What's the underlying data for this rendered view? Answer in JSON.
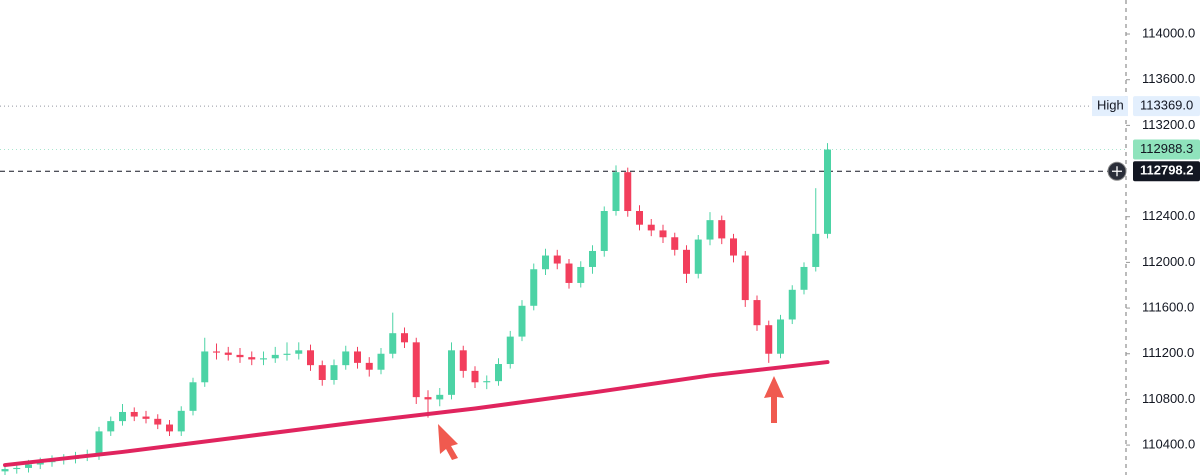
{
  "chart_data": {
    "type": "candlestick",
    "ylim": [
      110138,
      114298
    ],
    "yticks": [
      {
        "value": 114000,
        "label": "114000.0"
      },
      {
        "value": 113600,
        "label": "113600.0"
      },
      {
        "value": 113200,
        "label": "113200.0"
      },
      {
        "value": 112400,
        "label": "112400.0"
      },
      {
        "value": 112000,
        "label": "112000.0"
      },
      {
        "value": 111600,
        "label": "111600.0"
      },
      {
        "value": 111200,
        "label": "111200.0"
      },
      {
        "value": 110800,
        "label": "110800.0"
      },
      {
        "value": 110400,
        "label": "110400.0"
      }
    ],
    "up_color": "#4cd3a5",
    "down_color": "#f23e5c",
    "open": [
      110170,
      110190,
      110200,
      110230,
      110250,
      110270,
      110280,
      110300,
      110310,
      110520,
      110610,
      110690,
      110650,
      110630,
      110580,
      110520,
      110700,
      110950,
      111220,
      111210,
      111190,
      111170,
      111150,
      111160,
      111190,
      111200,
      111230,
      111100,
      110970,
      111100,
      111220,
      111120,
      111060,
      111200,
      111380,
      111300,
      110820,
      110800,
      110840,
      111230,
      111050,
      110950,
      110960,
      111110,
      111350,
      111620,
      111940,
      112060,
      111990,
      111820,
      111960,
      112100,
      112450,
      112790,
      112450,
      112330,
      112280,
      112220,
      112110,
      111900,
      112200,
      112370,
      112210,
      112060,
      111670,
      111450,
      111200,
      111500,
      111760,
      111960,
      112250
    ],
    "high": [
      110230,
      110240,
      110270,
      110290,
      110310,
      110320,
      110340,
      110360,
      110560,
      110650,
      110760,
      110730,
      110700,
      110670,
      110620,
      110740,
      110990,
      111340,
      111290,
      111260,
      111250,
      111220,
      111220,
      111260,
      111300,
      111300,
      111280,
      111140,
      111150,
      111270,
      111260,
      111170,
      111250,
      111560,
      111430,
      111340,
      110880,
      110900,
      111300,
      111270,
      111090,
      111010,
      111160,
      111400,
      111670,
      111990,
      112120,
      112110,
      112030,
      112010,
      112150,
      112490,
      112850,
      112830,
      112500,
      112380,
      112330,
      112260,
      112150,
      112240,
      112440,
      112410,
      112250,
      112100,
      111710,
      111490,
      111540,
      111800,
      112000,
      112650,
      113045
    ],
    "low": [
      110130,
      110150,
      110160,
      110190,
      110210,
      110230,
      110240,
      110260,
      110270,
      110480,
      110570,
      110610,
      110590,
      110540,
      110480,
      110480,
      110660,
      110910,
      111150,
      111140,
      111120,
      111100,
      111100,
      111120,
      111140,
      111150,
      111050,
      110920,
      110930,
      111060,
      111070,
      111000,
      111020,
      111160,
      111250,
      110760,
      110640,
      110740,
      110800,
      110990,
      110900,
      110890,
      110920,
      111070,
      111310,
      111580,
      111890,
      111940,
      111770,
      111780,
      111900,
      112050,
      112410,
      112400,
      112280,
      112230,
      112170,
      112060,
      111820,
      111860,
      112150,
      112160,
      112000,
      111610,
      111400,
      111120,
      111160,
      111460,
      111720,
      111920,
      112210
    ],
    "close": [
      110190,
      110200,
      110230,
      110250,
      110270,
      110280,
      110300,
      110310,
      110520,
      110610,
      110690,
      110650,
      110630,
      110580,
      110520,
      110700,
      110950,
      111220,
      111210,
      111190,
      111170,
      111150,
      111160,
      111190,
      111200,
      111230,
      111100,
      110970,
      111100,
      111220,
      111120,
      111060,
      111200,
      111380,
      111300,
      110820,
      110800,
      110840,
      111230,
      111050,
      110950,
      110960,
      111110,
      111350,
      111620,
      111940,
      112060,
      111990,
      111820,
      111960,
      112100,
      112450,
      112790,
      112450,
      112330,
      112280,
      112220,
      112110,
      111900,
      112200,
      112370,
      112210,
      112060,
      111670,
      111450,
      111200,
      111500,
      111760,
      111960,
      112250,
      112988.3
    ],
    "moving_average": {
      "color": "#e0245e",
      "x": [
        0,
        10,
        20,
        30,
        40,
        50,
        60,
        70
      ],
      "values": [
        110225,
        110340,
        110470,
        110600,
        110720,
        110860,
        111010,
        111127
      ]
    },
    "price_lines": [
      {
        "name": "High",
        "value": 113369,
        "value_label": "113369.0",
        "style": "dotted",
        "color": "#9598a1",
        "badge": "#e3effd"
      },
      {
        "value": 112988.3,
        "value_label": "112988.3",
        "style": "dotted",
        "color": "#a8e6cf",
        "badge": "#8fe3bc"
      },
      {
        "value": 112798.2,
        "value_label": "112798.2",
        "style": "dashed",
        "color": "#131722",
        "badge": "#131722"
      }
    ]
  }
}
